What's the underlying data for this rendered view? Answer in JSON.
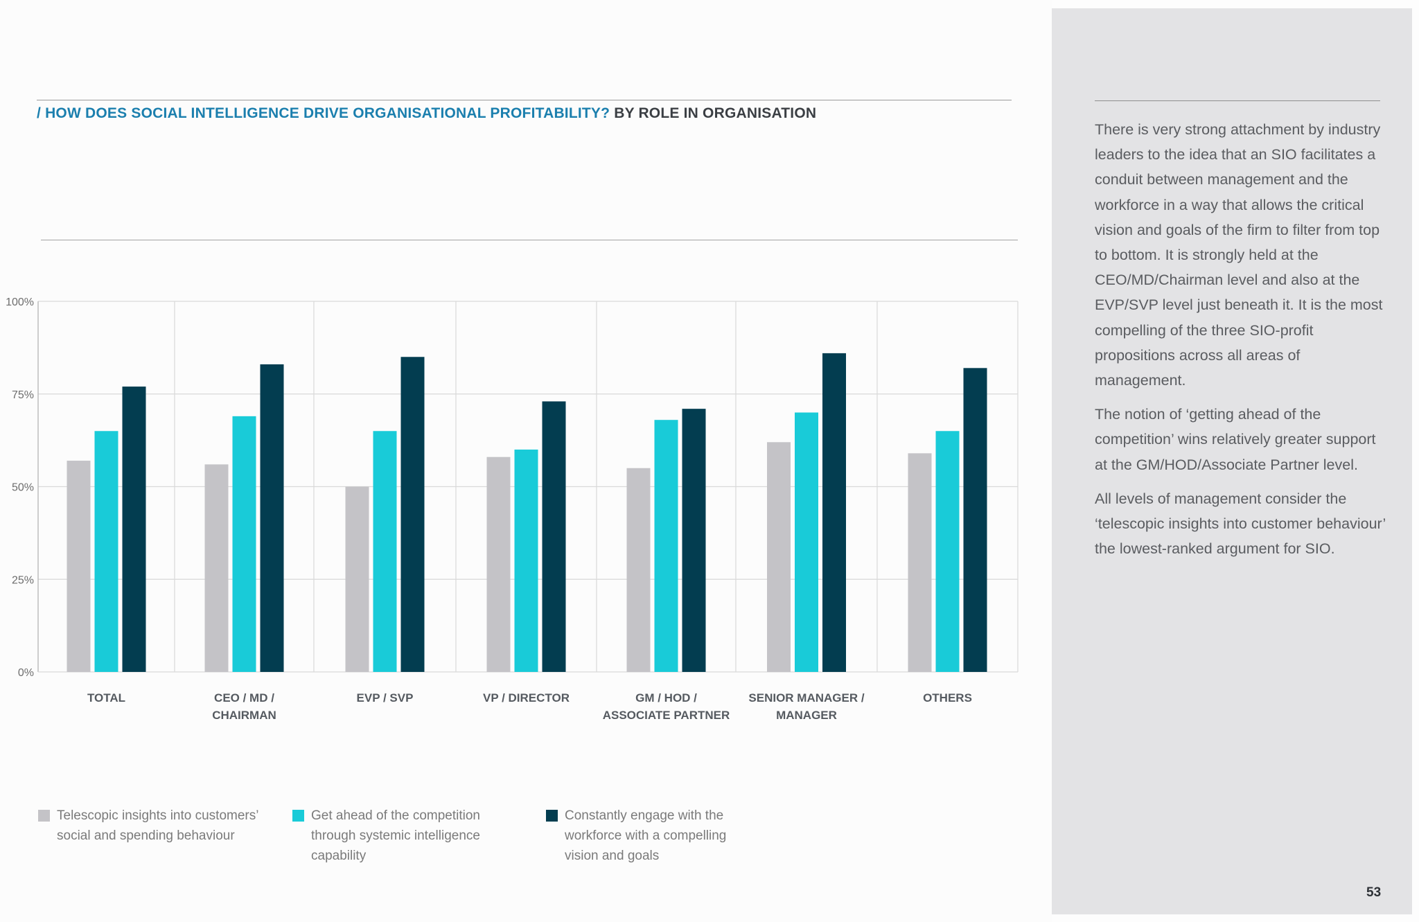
{
  "title": {
    "accent": "/ HOW DOES SOCIAL INTELLIGENCE DRIVE ORGANISATIONAL PROFITABILITY?",
    "rest": "BY ROLE IN ORGANISATION"
  },
  "colors": {
    "series_1": "#c4c3c7",
    "series_2": "#19cbd8",
    "series_3": "#033d50",
    "title_accent": "#1b7fae"
  },
  "chart_data": {
    "type": "bar",
    "categories": [
      "TOTAL",
      "CEO / MD /\nCHAIRMAN",
      "EVP / SVP",
      "VP / DIRECTOR",
      "GM / HOD /\nASSOCIATE PARTNER",
      "SENIOR MANAGER /\nMANAGER",
      "OTHERS"
    ],
    "series": [
      {
        "name": "Telescopic insights into customers’\nsocial and spending behaviour",
        "values": [
          57,
          56,
          50,
          58,
          55,
          62,
          59
        ]
      },
      {
        "name": "Get ahead of the competition\nthrough systemic intelligence\ncapability",
        "values": [
          65,
          69,
          65,
          60,
          68,
          70,
          65
        ]
      },
      {
        "name": "Constantly engage with the\nworkforce with a compelling\nvision and goals",
        "values": [
          77,
          83,
          85,
          73,
          71,
          86,
          82
        ]
      }
    ],
    "ylim": [
      0,
      100
    ],
    "yticks": [
      0,
      25,
      50,
      75,
      100
    ],
    "ytick_labels": [
      "0%",
      "25%",
      "50%",
      "75%",
      "100%"
    ],
    "grid": true,
    "legend_position": "bottom-left",
    "xlabel": "",
    "ylabel": ""
  },
  "sidebar": {
    "paragraphs": [
      "There is very strong attachment by industry leaders to the idea that an SIO facilitates a conduit between management and the workforce in a way that allows the critical vision and goals of the firm to filter from top to bottom. It is strongly held at the CEO/MD/Chairman level and also at the EVP/SVP level just beneath it. It is the most compelling of the three SIO-profit propositions across all areas of management.",
      "The notion of ‘getting ahead of the competition’ wins relatively greater support at the GM/HOD/Associate Partner level.",
      "All levels of management consider the ‘telescopic insights into customer behaviour’ the lowest-ranked argument for SIO."
    ]
  },
  "page_number": "53"
}
